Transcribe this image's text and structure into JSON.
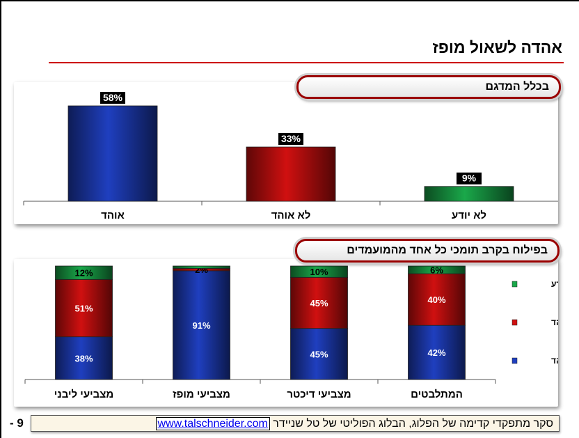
{
  "slide": {
    "title": "אהדה לשאול מופז",
    "page_number": "- 9",
    "footer_text": "סקר מתפקדי קדימה של הפלוג, הבלוג הפוליטי של טל שניידר",
    "footer_link": "www.talschneider.com"
  },
  "colors": {
    "support": "#1f3fbf",
    "oppose": "#d01010",
    "dont_know": "#1aa84a",
    "title_rule": "#cc0000"
  },
  "chart_data": [
    {
      "type": "bar",
      "title": "בכלל המדגם",
      "categories": [
        "אוהד",
        "לא אוהד",
        "לא יודע"
      ],
      "values": [
        58,
        33,
        9
      ],
      "value_labels": [
        "58%",
        "33%",
        "9%"
      ],
      "colors": [
        "#1f3fbf",
        "#d01010",
        "#1aa84a"
      ],
      "ylim": [
        0,
        70
      ],
      "grid": false,
      "legend": "none"
    },
    {
      "type": "bar",
      "stacked": true,
      "title": "בפילוח בקרב תומכי כל אחד מהמועמדים",
      "categories": [
        "מצביעי ליבני",
        "מצביעי מופז",
        "מצביעי דיכטר",
        "המתלבטים"
      ],
      "series": [
        {
          "name": "אוהד",
          "values": [
            38,
            91,
            45,
            42
          ],
          "labels": [
            "38%",
            "91%",
            "45%",
            "42%"
          ],
          "color": "#1f3fbf"
        },
        {
          "name": "לא אוהד",
          "values": [
            51,
            2,
            45,
            40
          ],
          "labels": [
            "51%",
            "2%",
            "45%",
            "40%"
          ],
          "color": "#d01010"
        },
        {
          "name": "לא יודע",
          "values": [
            12,
            2,
            10,
            6
          ],
          "labels": [
            "12%",
            "",
            "10%",
            "6%"
          ],
          "color": "#1aa84a"
        }
      ],
      "ylim": [
        0,
        100
      ],
      "grid": false,
      "legend": "right"
    }
  ]
}
